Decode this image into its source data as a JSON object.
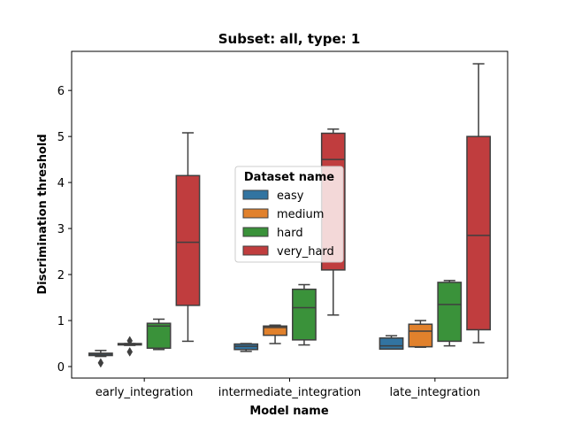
{
  "chart_data": {
    "type": "box",
    "title": "Subset: all, type: 1",
    "xlabel": "Model name",
    "ylabel": "Discrimination threshold",
    "ylim": [
      -0.25,
      6.85
    ],
    "yticks": [
      0,
      1,
      2,
      3,
      4,
      5,
      6
    ],
    "categories": [
      "early_integration",
      "intermediate_integration",
      "late_integration"
    ],
    "legend": {
      "title": "Dataset name",
      "placement": "center"
    },
    "series": [
      {
        "name": "easy",
        "color": "#3274a1",
        "boxes": [
          {
            "q1": 0.24,
            "median": 0.27,
            "q3": 0.29,
            "whisker_low": 0.22,
            "whisker_high": 0.35,
            "outliers": [
              0.08
            ]
          },
          {
            "q1": 0.37,
            "median": 0.44,
            "q3": 0.49,
            "whisker_low": 0.33,
            "whisker_high": 0.5,
            "outliers": []
          },
          {
            "q1": 0.38,
            "median": 0.45,
            "q3": 0.62,
            "whisker_low": 0.38,
            "whisker_high": 0.67,
            "outliers": []
          }
        ]
      },
      {
        "name": "medium",
        "color": "#e1812c",
        "boxes": [
          {
            "q1": 0.47,
            "median": 0.48,
            "q3": 0.5,
            "whisker_low": 0.46,
            "whisker_high": 0.5,
            "outliers": [
              0.32,
              0.56
            ]
          },
          {
            "q1": 0.68,
            "median": 0.85,
            "q3": 0.88,
            "whisker_low": 0.5,
            "whisker_high": 0.9,
            "outliers": []
          },
          {
            "q1": 0.43,
            "median": 0.77,
            "q3": 0.92,
            "whisker_low": 0.42,
            "whisker_high": 1.0,
            "outliers": []
          }
        ]
      },
      {
        "name": "hard",
        "color": "#3a923a",
        "boxes": [
          {
            "q1": 0.4,
            "median": 0.88,
            "q3": 0.94,
            "whisker_low": 0.37,
            "whisker_high": 1.03,
            "outliers": []
          },
          {
            "q1": 0.58,
            "median": 1.28,
            "q3": 1.68,
            "whisker_low": 0.47,
            "whisker_high": 1.78,
            "outliers": []
          },
          {
            "q1": 0.55,
            "median": 1.35,
            "q3": 1.83,
            "whisker_low": 0.45,
            "whisker_high": 1.87,
            "outliers": []
          }
        ]
      },
      {
        "name": "very_hard",
        "color": "#c03d3e",
        "boxes": [
          {
            "q1": 1.33,
            "median": 2.7,
            "q3": 4.15,
            "whisker_low": 0.55,
            "whisker_high": 5.08,
            "outliers": []
          },
          {
            "q1": 2.1,
            "median": 4.5,
            "q3": 5.07,
            "whisker_low": 1.12,
            "whisker_high": 5.16,
            "outliers": []
          },
          {
            "q1": 0.8,
            "median": 2.85,
            "q3": 5.0,
            "whisker_low": 0.52,
            "whisker_high": 6.58,
            "outliers": []
          }
        ]
      }
    ]
  }
}
